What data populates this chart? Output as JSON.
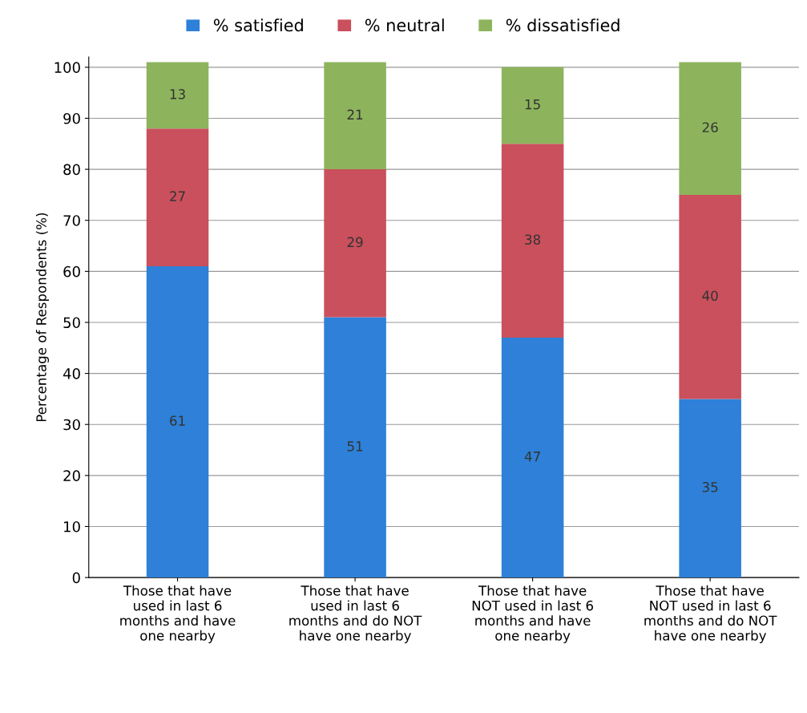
{
  "chart_data": {
    "type": "bar",
    "stacked": true,
    "ylabel": "Percentage of Respondents (%)",
    "categories": [
      "Those that have\nused in last 6\nmonths and have\none nearby",
      "Those that have\nused in last 6\nmonths and do NOT\nhave one nearby",
      "Those that have\nNOT used in last 6\nmonths and have\none nearby",
      "Those that have\nNOT used in last 6\nmonths and do NOT\nhave one nearby"
    ],
    "series": [
      {
        "name": "% satisfied",
        "color": "#2e80d8",
        "values": [
          61,
          51,
          47,
          35
        ]
      },
      {
        "name": "% neutral",
        "color": "#c9505c",
        "values": [
          27,
          29,
          38,
          40
        ]
      },
      {
        "name": "% dissatisfied",
        "color": "#8db45c",
        "values": [
          13,
          21,
          15,
          26
        ]
      }
    ],
    "ylim": [
      0,
      102
    ],
    "yticks": [
      0,
      10,
      20,
      30,
      40,
      50,
      60,
      70,
      80,
      90,
      100
    ],
    "grid": "y",
    "legend": "top",
    "data_labels": true
  }
}
